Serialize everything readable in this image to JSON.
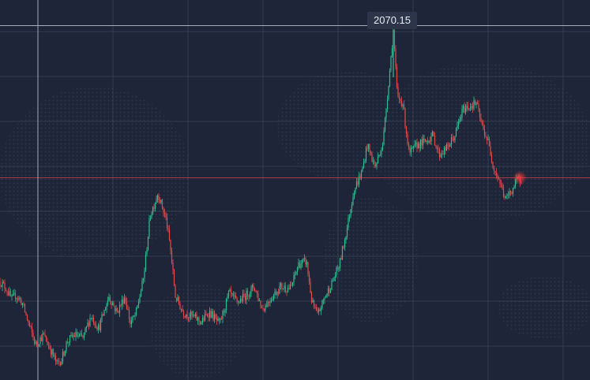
{
  "colors": {
    "background": "#1e2538",
    "grid": "#4a5266",
    "up": "#2ebf91",
    "down": "#e5484d",
    "crosshair": "#b9c0cc",
    "price_line": "#d9434f",
    "tooltip_bg": "#2c3549",
    "tooltip_text": "#e8ecf2"
  },
  "tooltip": {
    "value": "2070.15"
  },
  "chart_data": {
    "type": "candlestick",
    "title": "",
    "xlabel": "",
    "ylabel": "",
    "grid": true,
    "legend": "none",
    "ylim": [
      1520,
      2110
    ],
    "highlight_value": 2070.15,
    "reference_value": 1834,
    "anchors": [
      [
        0,
        1673
      ],
      [
        8,
        1662
      ],
      [
        15,
        1645
      ],
      [
        20,
        1652
      ],
      [
        28,
        1640
      ],
      [
        35,
        1612
      ],
      [
        45,
        1575
      ],
      [
        55,
        1590
      ],
      [
        65,
        1565
      ],
      [
        72,
        1545
      ],
      [
        78,
        1552
      ],
      [
        85,
        1580
      ],
      [
        95,
        1590
      ],
      [
        105,
        1585
      ],
      [
        115,
        1620
      ],
      [
        125,
        1600
      ],
      [
        138,
        1650
      ],
      [
        148,
        1625
      ],
      [
        158,
        1650
      ],
      [
        165,
        1608
      ],
      [
        172,
        1622
      ],
      [
        182,
        1680
      ],
      [
        190,
        1775
      ],
      [
        200,
        1810
      ],
      [
        210,
        1770
      ],
      [
        215,
        1732
      ],
      [
        222,
        1650
      ],
      [
        232,
        1625
      ],
      [
        245,
        1618
      ],
      [
        255,
        1610
      ],
      [
        265,
        1626
      ],
      [
        278,
        1606
      ],
      [
        290,
        1655
      ],
      [
        300,
        1640
      ],
      [
        310,
        1650
      ],
      [
        322,
        1665
      ],
      [
        332,
        1630
      ],
      [
        345,
        1650
      ],
      [
        355,
        1665
      ],
      [
        368,
        1662
      ],
      [
        378,
        1700
      ],
      [
        388,
        1704
      ],
      [
        395,
        1640
      ],
      [
        402,
        1620
      ],
      [
        410,
        1645
      ],
      [
        420,
        1670
      ],
      [
        430,
        1700
      ],
      [
        440,
        1760
      ],
      [
        448,
        1815
      ],
      [
        458,
        1842
      ],
      [
        465,
        1885
      ],
      [
        475,
        1850
      ],
      [
        485,
        1890
      ],
      [
        493,
        1995
      ],
      [
        498,
        2062
      ],
      [
        503,
        1960
      ],
      [
        510,
        1950
      ],
      [
        518,
        1870
      ],
      [
        528,
        1885
      ],
      [
        538,
        1890
      ],
      [
        548,
        1900
      ],
      [
        556,
        1870
      ],
      [
        566,
        1880
      ],
      [
        576,
        1900
      ],
      [
        586,
        1940
      ],
      [
        594,
        1945
      ],
      [
        603,
        1950
      ],
      [
        610,
        1915
      ],
      [
        618,
        1890
      ],
      [
        625,
        1850
      ],
      [
        632,
        1830
      ],
      [
        640,
        1800
      ],
      [
        648,
        1815
      ],
      [
        655,
        1830
      ],
      [
        660,
        1832
      ]
    ]
  }
}
